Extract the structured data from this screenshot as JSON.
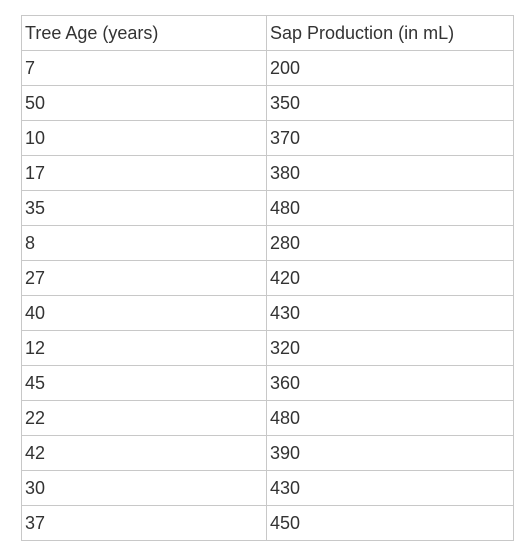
{
  "table": {
    "headers": [
      "Tree Age (years)",
      "Sap Production (in mL)"
    ],
    "rows": [
      [
        "7",
        "200"
      ],
      [
        "50",
        "350"
      ],
      [
        "10",
        "370"
      ],
      [
        "17",
        "380"
      ],
      [
        "35",
        "480"
      ],
      [
        "8",
        "280"
      ],
      [
        "27",
        "420"
      ],
      [
        "40",
        "430"
      ],
      [
        "12",
        "320"
      ],
      [
        "45",
        "360"
      ],
      [
        "22",
        "480"
      ],
      [
        "42",
        "390"
      ],
      [
        "30",
        "430"
      ],
      [
        "37",
        "450"
      ]
    ]
  }
}
